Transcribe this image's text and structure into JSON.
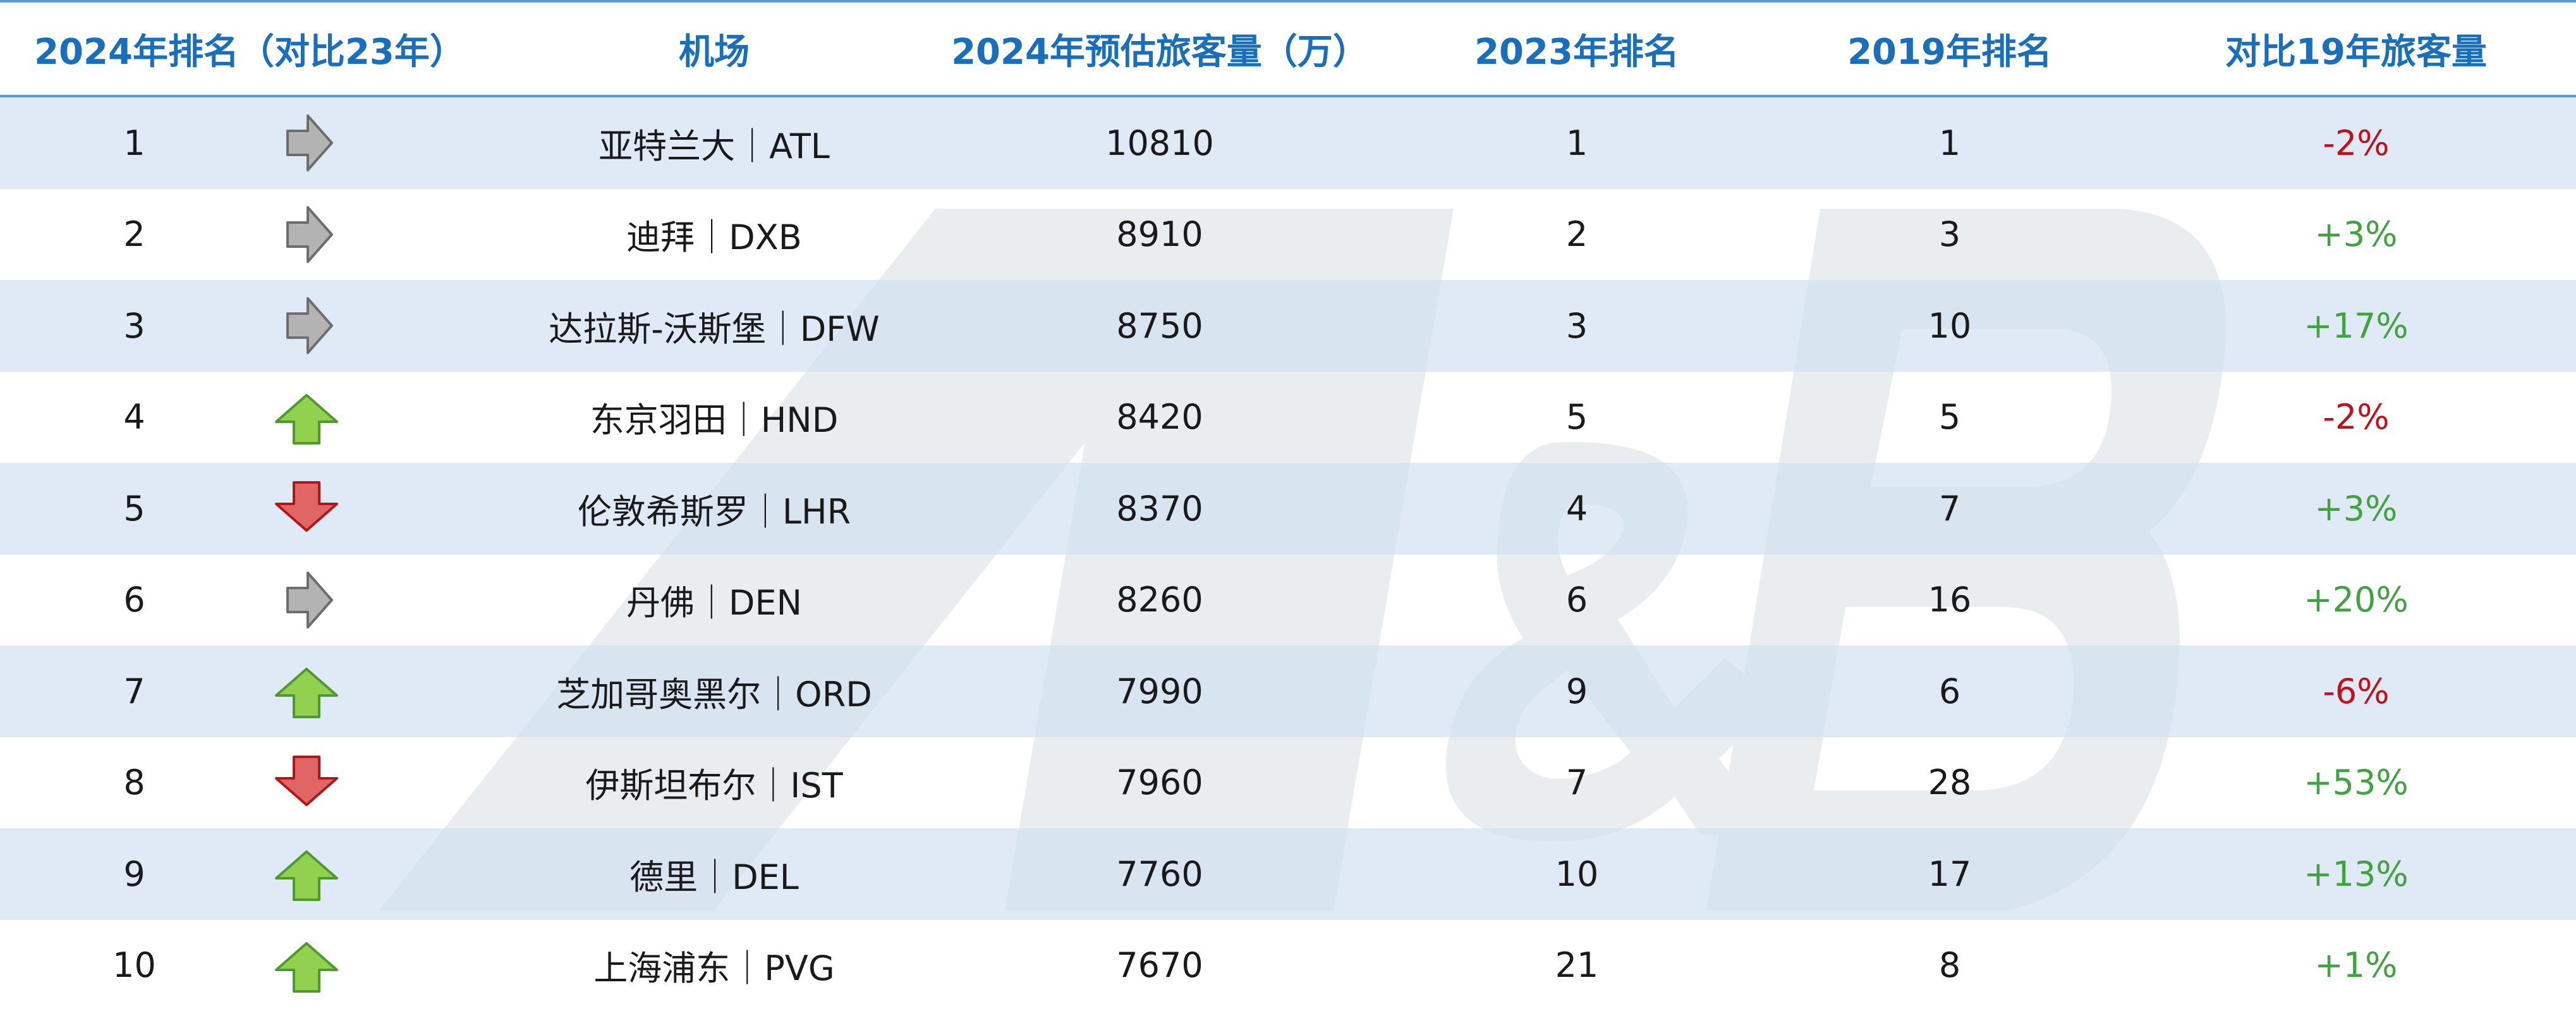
{
  "chart_data": {
    "type": "table",
    "columns": [
      "2024年排名（对比23年）",
      "机场",
      "2024年预估旅客量（万）",
      "2023年排名",
      "2019年排名",
      "对比19年旅客量"
    ],
    "rows": [
      {
        "rank_2024": "1",
        "trend": "same",
        "airport": "亚特兰大｜ATL",
        "passengers_2024": "10810",
        "rank_2023": "1",
        "rank_2019": "1",
        "change_vs_2019": "-2%"
      },
      {
        "rank_2024": "2",
        "trend": "same",
        "airport": "迪拜｜DXB",
        "passengers_2024": "8910",
        "rank_2023": "2",
        "rank_2019": "3",
        "change_vs_2019": "+3%"
      },
      {
        "rank_2024": "3",
        "trend": "same",
        "airport": "达拉斯-沃斯堡｜DFW",
        "passengers_2024": "8750",
        "rank_2023": "3",
        "rank_2019": "10",
        "change_vs_2019": "+17%"
      },
      {
        "rank_2024": "4",
        "trend": "up",
        "airport": "东京羽田｜HND",
        "passengers_2024": "8420",
        "rank_2023": "5",
        "rank_2019": "5",
        "change_vs_2019": "-2%"
      },
      {
        "rank_2024": "5",
        "trend": "down",
        "airport": "伦敦希斯罗｜LHR",
        "passengers_2024": "8370",
        "rank_2023": "4",
        "rank_2019": "7",
        "change_vs_2019": "+3%"
      },
      {
        "rank_2024": "6",
        "trend": "same",
        "airport": "丹佛｜DEN",
        "passengers_2024": "8260",
        "rank_2023": "6",
        "rank_2019": "16",
        "change_vs_2019": "+20%"
      },
      {
        "rank_2024": "7",
        "trend": "up",
        "airport": "芝加哥奥黑尔｜ORD",
        "passengers_2024": "7990",
        "rank_2023": "9",
        "rank_2019": "6",
        "change_vs_2019": "-6%"
      },
      {
        "rank_2024": "8",
        "trend": "down",
        "airport": "伊斯坦布尔｜IST",
        "passengers_2024": "7960",
        "rank_2023": "7",
        "rank_2019": "28",
        "change_vs_2019": "+53%"
      },
      {
        "rank_2024": "9",
        "trend": "up",
        "airport": "德里｜DEL",
        "passengers_2024": "7760",
        "rank_2023": "10",
        "rank_2019": "17",
        "change_vs_2019": "+13%"
      },
      {
        "rank_2024": "10",
        "trend": "up",
        "airport": "上海浦东｜PVG",
        "passengers_2024": "7670",
        "rank_2023": "21",
        "rank_2019": "8",
        "change_vs_2019": "+1%"
      }
    ]
  },
  "watermark_text": "AL&B",
  "colors": {
    "header_text": "#1a6fba",
    "header_rule": "#5b9bd5",
    "band_fill": "#d7e4f3",
    "positive": "#3fa33f",
    "negative": "#c0101a",
    "arrow_same": "#b3b3b3",
    "arrow_up": "#92d050",
    "arrow_down": "#e06666",
    "watermark": "#dce1e8"
  }
}
